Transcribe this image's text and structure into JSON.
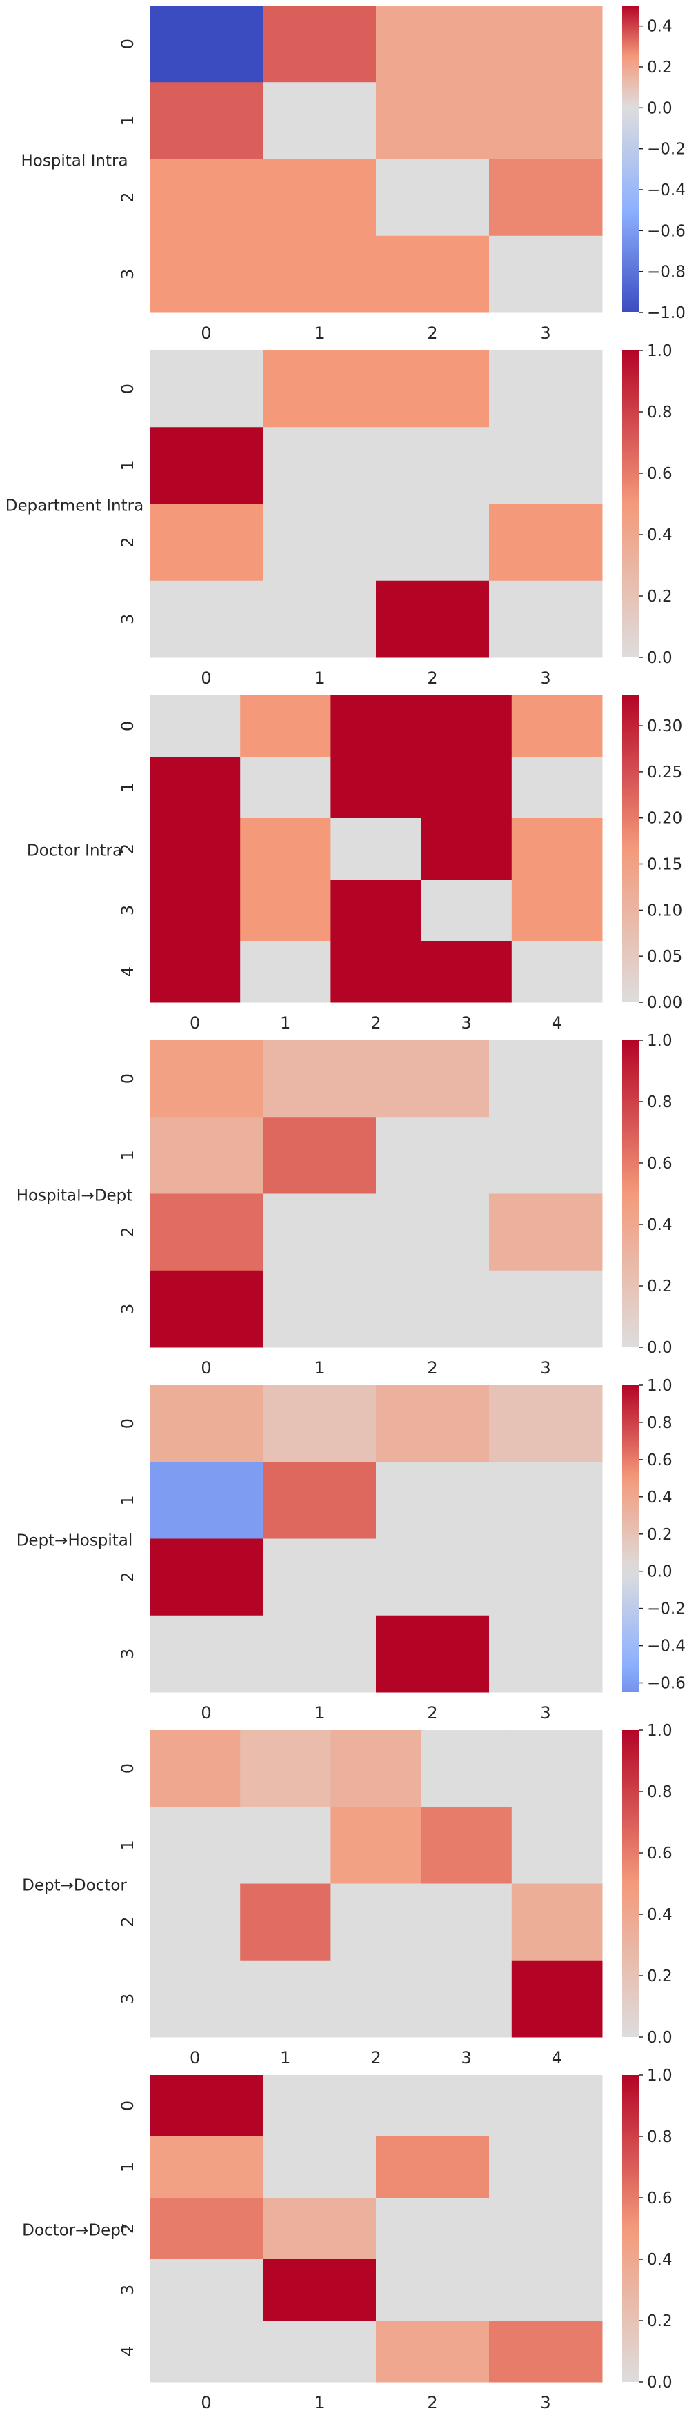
{
  "chart_data": [
    {
      "type": "heatmap",
      "ylabel": "Hospital Intra",
      "x_ticks": [
        "0",
        "1",
        "2",
        "3"
      ],
      "y_ticks": [
        "0",
        "1",
        "2",
        "3"
      ],
      "colormap": "coolwarm",
      "vmin": -1.0,
      "vmax": 0.5,
      "colorbar_ticks": [
        "0.4",
        "0.2",
        "0.0",
        "−0.2",
        "−0.4",
        "−0.6",
        "−0.8",
        "−1.0"
      ],
      "colorbar_tick_values": [
        0.4,
        0.2,
        0.0,
        -0.2,
        -0.4,
        -0.6,
        -0.8,
        -1.0
      ],
      "values": [
        [
          -1.0,
          0.35,
          0.2,
          0.2
        ],
        [
          0.35,
          0.0,
          0.2,
          0.2
        ],
        [
          0.25,
          0.25,
          0.0,
          0.28
        ],
        [
          0.25,
          0.25,
          0.25,
          0.0
        ]
      ]
    },
    {
      "type": "heatmap",
      "ylabel": "Department Intra",
      "x_ticks": [
        "0",
        "1",
        "2",
        "3"
      ],
      "y_ticks": [
        "0",
        "1",
        "2",
        "3"
      ],
      "colormap": "coolwarm-upper",
      "vmin": 0.0,
      "vmax": 1.0,
      "colorbar_ticks": [
        "1.0",
        "0.8",
        "0.6",
        "0.4",
        "0.2",
        "0.0"
      ],
      "colorbar_tick_values": [
        1.0,
        0.8,
        0.6,
        0.4,
        0.2,
        0.0
      ],
      "values": [
        [
          0.0,
          0.5,
          0.5,
          0.0
        ],
        [
          1.0,
          0.0,
          0.0,
          0.0
        ],
        [
          0.5,
          0.0,
          0.0,
          0.5
        ],
        [
          0.0,
          0.0,
          1.0,
          0.0
        ]
      ]
    },
    {
      "type": "heatmap",
      "ylabel": "Doctor Intra",
      "x_ticks": [
        "0",
        "1",
        "2",
        "3",
        "4"
      ],
      "y_ticks": [
        "0",
        "1",
        "2",
        "3",
        "4"
      ],
      "colormap": "coolwarm-upper",
      "vmin": 0.0,
      "vmax": 0.333,
      "colorbar_ticks": [
        "0.30",
        "0.25",
        "0.20",
        "0.15",
        "0.10",
        "0.05",
        "0.00"
      ],
      "colorbar_tick_values": [
        0.3,
        0.25,
        0.2,
        0.15,
        0.1,
        0.05,
        0.0
      ],
      "values": [
        [
          0.0,
          0.167,
          0.333,
          0.333,
          0.167
        ],
        [
          0.333,
          0.0,
          0.333,
          0.333,
          0.0
        ],
        [
          0.333,
          0.167,
          0.0,
          0.333,
          0.167
        ],
        [
          0.333,
          0.167,
          0.333,
          0.0,
          0.167
        ],
        [
          0.333,
          0.0,
          0.333,
          0.333,
          0.0
        ]
      ]
    },
    {
      "type": "heatmap",
      "ylabel": "Hospital→Dept",
      "x_ticks": [
        "0",
        "1",
        "2",
        "3"
      ],
      "y_ticks": [
        "0",
        "1",
        "2",
        "3"
      ],
      "colormap": "coolwarm-upper",
      "vmin": 0.0,
      "vmax": 1.0,
      "colorbar_ticks": [
        "1.0",
        "0.8",
        "0.6",
        "0.4",
        "0.2",
        "0.0"
      ],
      "colorbar_tick_values": [
        1.0,
        0.8,
        0.6,
        0.4,
        0.2,
        0.0
      ],
      "values": [
        [
          0.45,
          0.28,
          0.28,
          0.0
        ],
        [
          0.33,
          0.67,
          0.0,
          0.0
        ],
        [
          0.65,
          0.0,
          0.0,
          0.33
        ],
        [
          1.0,
          0.0,
          0.0,
          0.0
        ]
      ]
    },
    {
      "type": "heatmap",
      "ylabel": "Dept→Hospital",
      "x_ticks": [
        "0",
        "1",
        "2",
        "3"
      ],
      "y_ticks": [
        "0",
        "1",
        "2",
        "3"
      ],
      "colormap": "coolwarm",
      "vmin": -0.65,
      "vmax": 1.0,
      "colorbar_ticks": [
        "1.0",
        "0.8",
        "0.6",
        "0.4",
        "0.2",
        "0.0",
        "−0.2",
        "−0.4",
        "−0.6"
      ],
      "colorbar_tick_values": [
        1.0,
        0.8,
        0.6,
        0.4,
        0.2,
        0.0,
        -0.2,
        -0.4,
        -0.6
      ],
      "values": [
        [
          0.35,
          0.2,
          0.33,
          0.2
        ],
        [
          -0.6,
          0.67,
          0.0,
          0.0
        ],
        [
          1.0,
          0.0,
          0.0,
          0.0
        ],
        [
          0.0,
          0.0,
          1.0,
          0.0
        ]
      ]
    },
    {
      "type": "heatmap",
      "ylabel": "Dept→Doctor",
      "x_ticks": [
        "0",
        "1",
        "2",
        "3",
        "4"
      ],
      "y_ticks": [
        "0",
        "1",
        "2",
        "3"
      ],
      "colormap": "coolwarm-upper",
      "vmin": 0.0,
      "vmax": 1.0,
      "colorbar_ticks": [
        "1.0",
        "0.8",
        "0.6",
        "0.4",
        "0.2",
        "0.0"
      ],
      "colorbar_tick_values": [
        1.0,
        0.8,
        0.6,
        0.4,
        0.2,
        0.0
      ],
      "values": [
        [
          0.4,
          0.25,
          0.33,
          0.0,
          0.0
        ],
        [
          0.0,
          0.0,
          0.45,
          0.6,
          0.0
        ],
        [
          0.0,
          0.65,
          0.0,
          0.0,
          0.35
        ],
        [
          0.0,
          0.0,
          0.0,
          0.0,
          1.0
        ]
      ]
    },
    {
      "type": "heatmap",
      "ylabel": "Doctor→Dept",
      "x_ticks": [
        "0",
        "1",
        "2",
        "3"
      ],
      "y_ticks": [
        "0",
        "1",
        "2",
        "3",
        "4"
      ],
      "colormap": "coolwarm-upper",
      "vmin": 0.0,
      "vmax": 1.0,
      "colorbar_ticks": [
        "1.0",
        "0.8",
        "0.6",
        "0.4",
        "0.2",
        "0.0"
      ],
      "colorbar_tick_values": [
        1.0,
        0.8,
        0.6,
        0.4,
        0.2,
        0.0
      ],
      "values": [
        [
          1.0,
          0.0,
          0.0,
          0.0
        ],
        [
          0.45,
          0.0,
          0.55,
          0.0
        ],
        [
          0.6,
          0.33,
          0.0,
          0.0
        ],
        [
          0.0,
          1.0,
          0.0,
          0.0
        ],
        [
          0.0,
          0.0,
          0.4,
          0.6
        ]
      ]
    }
  ]
}
